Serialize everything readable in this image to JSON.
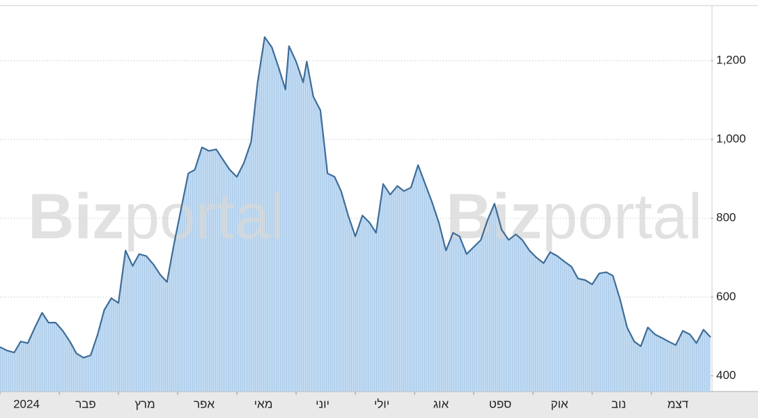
{
  "chart_data": {
    "type": "area",
    "watermark": {
      "bold": "Biz",
      "light": "portal"
    },
    "color": "#3d6d99",
    "fill": "#b9d6f0",
    "grid": true,
    "y_axis_side": "right",
    "x": [
      0,
      0.12,
      0.24,
      0.35,
      0.47,
      0.59,
      0.71,
      0.82,
      0.94,
      1.06,
      1.18,
      1.29,
      1.41,
      1.53,
      1.65,
      1.76,
      1.88,
      2,
      2.12,
      2.24,
      2.35,
      2.47,
      2.59,
      2.71,
      2.82,
      2.94,
      3.06,
      3.18,
      3.29,
      3.41,
      3.53,
      3.65,
      3.76,
      3.88,
      4,
      4.12,
      4.24,
      4.35,
      4.47,
      4.59,
      4.71,
      4.82,
      4.88,
      5,
      5.12,
      5.18,
      5.29,
      5.41,
      5.53,
      5.65,
      5.76,
      5.88,
      6,
      6.12,
      6.24,
      6.35,
      6.47,
      6.59,
      6.71,
      6.82,
      6.94,
      7.06,
      7.18,
      7.29,
      7.41,
      7.53,
      7.65,
      7.76,
      7.88,
      8,
      8.12,
      8.24,
      8.35,
      8.47,
      8.59,
      8.71,
      8.82,
      8.94,
      9.06,
      9.18,
      9.29,
      9.41,
      9.53,
      9.65,
      9.76,
      9.88,
      10,
      10.12,
      10.24,
      10.35,
      10.47,
      10.59,
      10.71,
      10.82,
      10.94,
      11.06,
      11.18,
      11.29,
      11.41,
      11.53,
      11.65,
      11.76,
      11.88,
      12
    ],
    "values": [
      473,
      464,
      459,
      487,
      483,
      523,
      560,
      535,
      535,
      514,
      487,
      457,
      446,
      452,
      505,
      567,
      597,
      585,
      718,
      679,
      709,
      704,
      683,
      656,
      638,
      736,
      825,
      914,
      923,
      980,
      971,
      975,
      950,
      923,
      905,
      941,
      994,
      1145,
      1260,
      1234,
      1180,
      1127,
      1237,
      1198,
      1145,
      1198,
      1109,
      1074,
      914,
      905,
      869,
      807,
      754,
      807,
      789,
      763,
      887,
      860,
      882,
      869,
      878,
      935,
      887,
      843,
      789,
      718,
      763,
      754,
      709,
      727,
      745,
      798,
      837,
      771,
      745,
      759,
      745,
      718,
      700,
      686,
      714,
      704,
      690,
      677,
      647,
      643,
      632,
      660,
      663,
      654,
      594,
      523,
      487,
      475,
      523,
      505,
      496,
      487,
      478,
      514,
      505,
      483,
      517,
      498
    ],
    "xlim": [
      0,
      12
    ],
    "xticks": [
      {
        "value": 0,
        "label": "2024"
      },
      {
        "value": 1,
        "label": "פבר"
      },
      {
        "value": 2,
        "label": "מרץ"
      },
      {
        "value": 3,
        "label": "אפר"
      },
      {
        "value": 4,
        "label": "מאי"
      },
      {
        "value": 5,
        "label": "יוני"
      },
      {
        "value": 6,
        "label": "יולי"
      },
      {
        "value": 7,
        "label": "אוג"
      },
      {
        "value": 8,
        "label": "ספט"
      },
      {
        "value": 9,
        "label": "אוק"
      },
      {
        "value": 10,
        "label": "נוב"
      },
      {
        "value": 11,
        "label": "דצמ"
      }
    ],
    "ylim": [
      360,
      1340
    ],
    "yticks": [
      400,
      600,
      800,
      {
        "value": 1000,
        "label": "1,000"
      },
      {
        "value": 1200,
        "label": "1,200"
      }
    ]
  }
}
